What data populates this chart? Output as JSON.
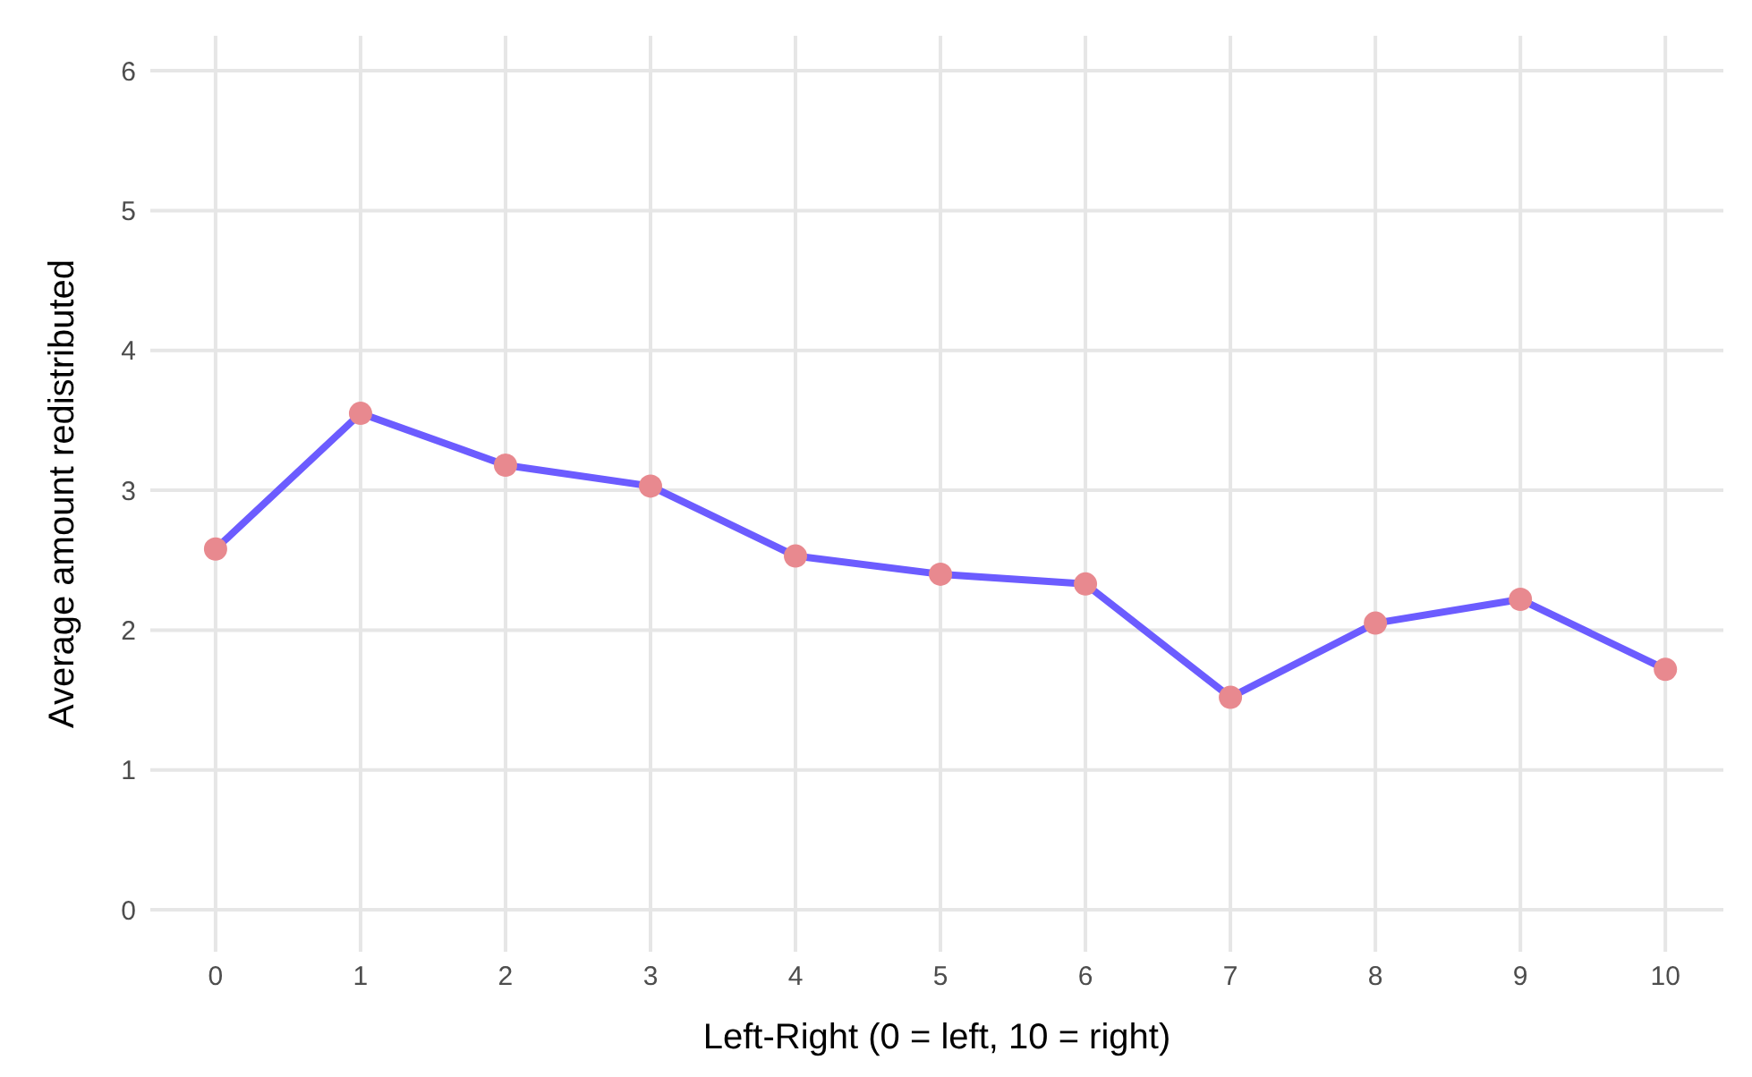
{
  "chart_data": {
    "type": "line",
    "xlabel": "Left-Right (0 = left, 10 = right)",
    "ylabel": "Average amount redistributed",
    "x": [
      0,
      1,
      2,
      3,
      4,
      5,
      6,
      7,
      8,
      9,
      10
    ],
    "series": [
      {
        "color": "#6c5cff",
        "colors": [
          "#e8898f",
          "#e8898f",
          "#e8898f",
          "#e8898f",
          "#e8898f",
          "#e8898f",
          "#e8898f",
          "#e8898f",
          "#e8898f",
          "#e8898f",
          "#e8898f"
        ],
        "values": [
          2.58,
          3.55,
          3.18,
          3.03,
          2.53,
          2.4,
          2.33,
          1.52,
          2.05,
          2.22,
          1.72
        ]
      }
    ],
    "marker": "circle",
    "line_style": "solid",
    "xlim": [
      -0.45,
      10.4
    ],
    "xticks": [
      0,
      1,
      2,
      3,
      4,
      5,
      6,
      7,
      8,
      9,
      10
    ],
    "ylim": [
      -0.3,
      6.25
    ],
    "yticks": [
      0,
      1,
      2,
      3,
      4,
      5,
      6
    ],
    "grid": true
  }
}
